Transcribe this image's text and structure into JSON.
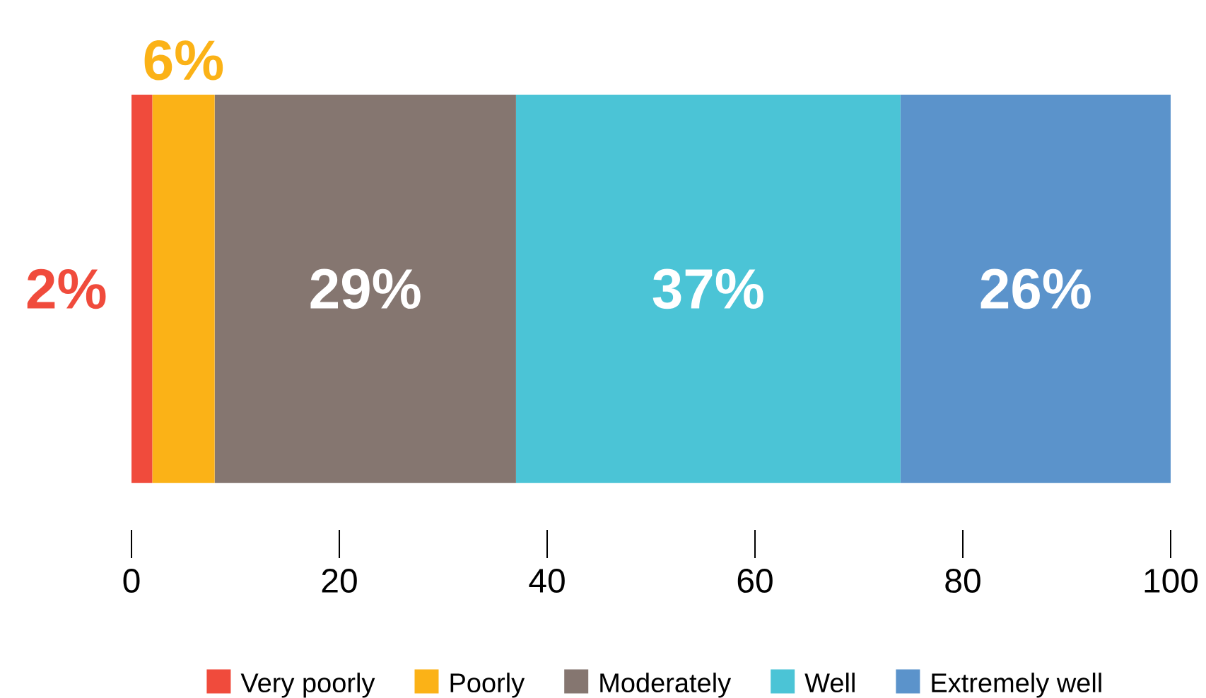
{
  "chart_data": {
    "type": "bar",
    "orientation": "horizontal",
    "stacked": true,
    "categories": [
      null
    ],
    "series": [
      {
        "name": "Very poorly",
        "color": "#f04b3c",
        "values": [
          2
        ],
        "value_labels": [
          "2%"
        ]
      },
      {
        "name": "Poorly",
        "color": "#fbb217",
        "values": [
          6
        ],
        "value_labels": [
          "6%"
        ]
      },
      {
        "name": "Moderately",
        "color": "#857670",
        "values": [
          29
        ],
        "value_labels": [
          "29%"
        ]
      },
      {
        "name": "Well",
        "color": "#4bc4d6",
        "values": [
          37
        ],
        "value_labels": [
          "37%"
        ]
      },
      {
        "name": "Extremely well",
        "color": "#5b93cb",
        "values": [
          26
        ],
        "value_labels": [
          "26%"
        ]
      }
    ],
    "xlim": [
      0,
      100
    ],
    "xticks": [
      0,
      20,
      40,
      60,
      80,
      100
    ],
    "legend": "bottom"
  }
}
